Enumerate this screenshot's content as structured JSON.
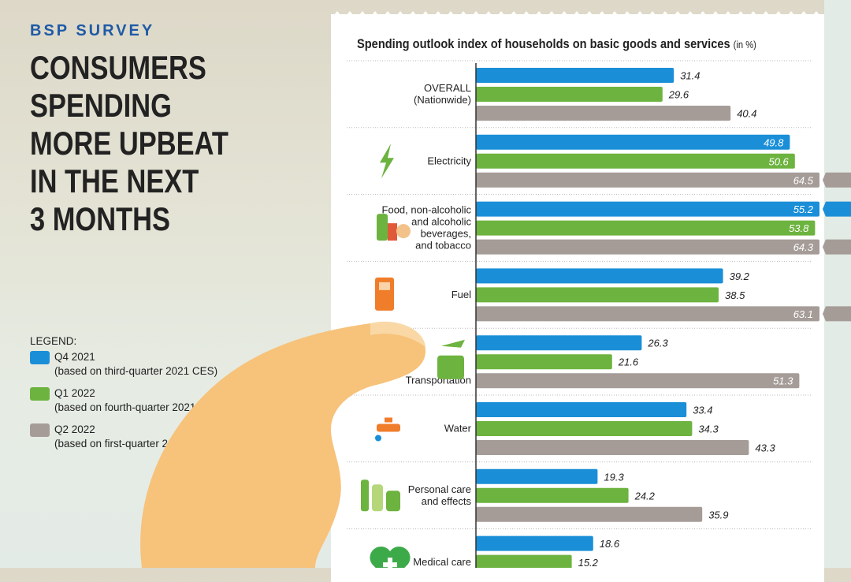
{
  "header": {
    "kicker": "BSP SURVEY",
    "headline": "CONSUMERS\nSPENDING\nMORE UPBEAT\nIN THE NEXT\n3 MONTHS"
  },
  "legend": {
    "title": "LEGEND:",
    "items": [
      {
        "label": "Q4 2021",
        "note": "(based on third-quarter 2021 CES)",
        "color": "#1a8fd8"
      },
      {
        "label": "Q1 2022",
        "note": "(based on fourth-quarter 2021 CES)",
        "color": "#6db33f"
      },
      {
        "label": "Q2 2022",
        "note": "(based on first-quarter 2022 CES)",
        "color": "#a59c98"
      }
    ]
  },
  "chart_data": {
    "type": "bar",
    "orientation": "horizontal",
    "title": "Spending outlook index of households on basic goods and services",
    "unit": "(in %)",
    "categories": [
      {
        "label": "OVERALL\n(Nationwide)",
        "icon": ""
      },
      {
        "label": "Electricity",
        "icon": "lightning-icon"
      },
      {
        "label": "Food, non-alcoholic\nand alcoholic\nbeverages,\nand tobacco",
        "icon": "food-drinks-icon"
      },
      {
        "label": "Fuel",
        "icon": "fuel-pump-icon"
      },
      {
        "label": "Transportation",
        "icon": "plane-bus-icon"
      },
      {
        "label": "Water",
        "icon": "water-faucet-icon"
      },
      {
        "label": "Personal care\nand effects",
        "icon": "toiletries-icon"
      },
      {
        "label": "Medical care",
        "icon": "heart-cross-icon"
      }
    ],
    "series": [
      {
        "name": "Q4 2021",
        "color": "#1a8fd8",
        "values": [
          31.4,
          49.8,
          55.2,
          39.2,
          26.3,
          33.4,
          19.3,
          18.6
        ]
      },
      {
        "name": "Q1 2022",
        "color": "#6db33f",
        "values": [
          29.6,
          50.6,
          53.8,
          38.5,
          21.6,
          34.3,
          24.2,
          15.2
        ]
      },
      {
        "name": "Q2 2022",
        "color": "#a59c98",
        "values": [
          40.4,
          64.5,
          64.3,
          63.1,
          51.3,
          43.3,
          35.9,
          null
        ]
      }
    ],
    "axis_break": true,
    "grid": false,
    "legend_placement": "left"
  }
}
